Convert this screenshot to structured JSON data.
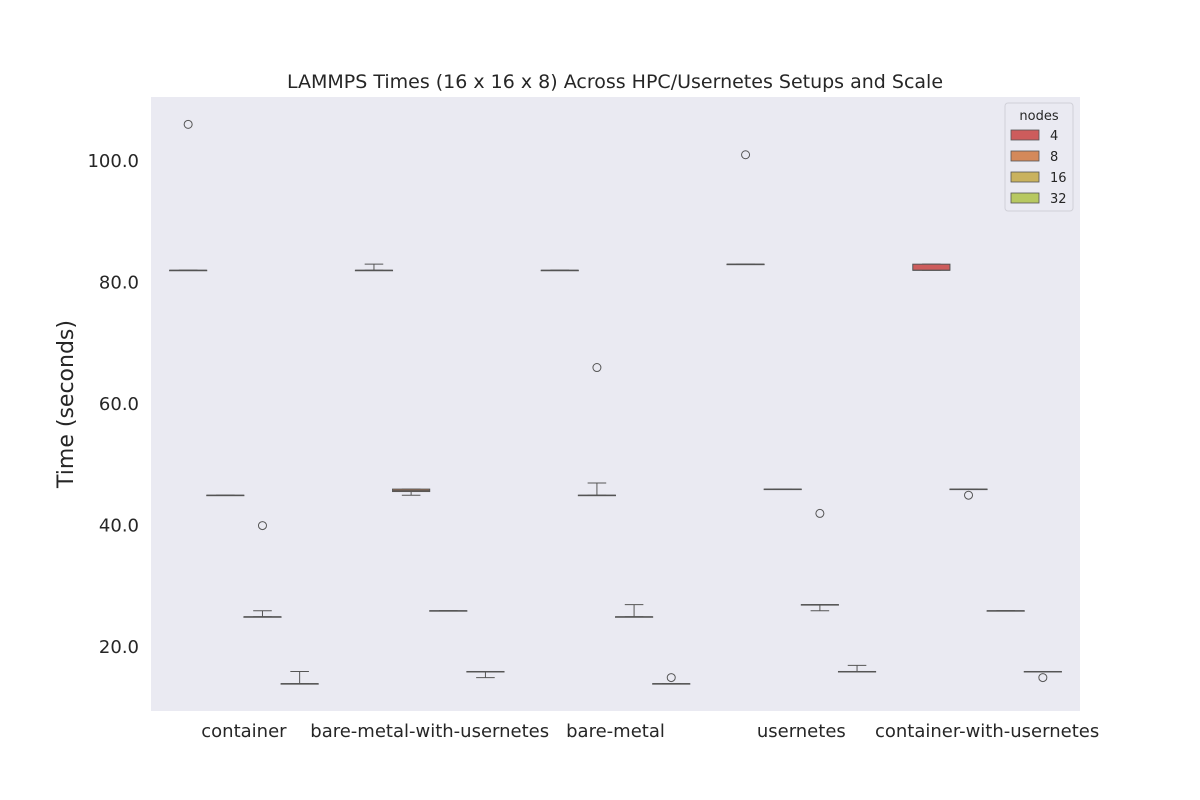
{
  "chart_data": {
    "type": "box",
    "title": "LAMMPS Times (16 x 16 x 8) Across HPC/Usernetes Setups and Scale",
    "xlabel": "",
    "ylabel": "Time (seconds)",
    "ylim": [
      9.5,
      110.5
    ],
    "yticks": [
      20.0,
      40.0,
      60.0,
      80.0,
      100.0
    ],
    "ytick_labels": [
      "20.0",
      "40.0",
      "60.0",
      "80.0",
      "100.0"
    ],
    "grid": false,
    "categories": [
      "container",
      "bare-metal-with-usernetes",
      "bare-metal",
      "usernetes",
      "container-with-usernetes"
    ],
    "legend": {
      "title": "nodes",
      "placement": "top-right"
    },
    "series": [
      {
        "name": "4",
        "color": "#cd5c5c",
        "boxes": [
          {
            "wlo": 82,
            "q1": 82,
            "med": 82,
            "q3": 82,
            "whi": 82,
            "outliers": [
              106
            ]
          },
          {
            "wlo": 82,
            "q1": 82,
            "med": 82,
            "q3": 82,
            "whi": 83,
            "outliers": []
          },
          {
            "wlo": 82,
            "q1": 82,
            "med": 82,
            "q3": 82,
            "whi": 82,
            "outliers": []
          },
          {
            "wlo": 83,
            "q1": 83,
            "med": 83,
            "q3": 83,
            "whi": 83,
            "outliers": [
              101
            ]
          },
          {
            "wlo": 82,
            "q1": 82,
            "med": 82,
            "q3": 83,
            "whi": 83,
            "outliers": []
          }
        ]
      },
      {
        "name": "8",
        "color": "#d4895a",
        "boxes": [
          {
            "wlo": 45,
            "q1": 45,
            "med": 45,
            "q3": 45,
            "whi": 45,
            "outliers": []
          },
          {
            "wlo": 45,
            "q1": 45.6,
            "med": 45.8,
            "q3": 46,
            "whi": 46,
            "outliers": []
          },
          {
            "wlo": 45,
            "q1": 45,
            "med": 45,
            "q3": 45,
            "whi": 47,
            "outliers": [
              66
            ]
          },
          {
            "wlo": 46,
            "q1": 46,
            "med": 46,
            "q3": 46,
            "whi": 46,
            "outliers": []
          },
          {
            "wlo": 46,
            "q1": 46,
            "med": 46,
            "q3": 46,
            "whi": 46,
            "outliers": [
              45
            ]
          }
        ]
      },
      {
        "name": "16",
        "color": "#c9b25e",
        "boxes": [
          {
            "wlo": 25,
            "q1": 25,
            "med": 25,
            "q3": 25,
            "whi": 26,
            "outliers": [
              40
            ]
          },
          {
            "wlo": 26,
            "q1": 26,
            "med": 26,
            "q3": 26,
            "whi": 26,
            "outliers": []
          },
          {
            "wlo": 25,
            "q1": 25,
            "med": 25,
            "q3": 25,
            "whi": 27,
            "outliers": []
          },
          {
            "wlo": 26,
            "q1": 27,
            "med": 27,
            "q3": 27,
            "whi": 27,
            "outliers": [
              42
            ]
          },
          {
            "wlo": 26,
            "q1": 26,
            "med": 26,
            "q3": 26,
            "whi": 26,
            "outliers": []
          }
        ]
      },
      {
        "name": "32",
        "color": "#b7c861",
        "boxes": [
          {
            "wlo": 14,
            "q1": 14,
            "med": 14,
            "q3": 14,
            "whi": 16,
            "outliers": []
          },
          {
            "wlo": 15,
            "q1": 16,
            "med": 16,
            "q3": 16,
            "whi": 16,
            "outliers": []
          },
          {
            "wlo": 14,
            "q1": 14,
            "med": 14,
            "q3": 14,
            "whi": 14,
            "outliers": [
              15
            ]
          },
          {
            "wlo": 16,
            "q1": 16,
            "med": 16,
            "q3": 16,
            "whi": 17,
            "outliers": []
          },
          {
            "wlo": 16,
            "q1": 16,
            "med": 16,
            "q3": 16,
            "whi": 16,
            "outliers": [
              15
            ]
          }
        ]
      }
    ]
  }
}
